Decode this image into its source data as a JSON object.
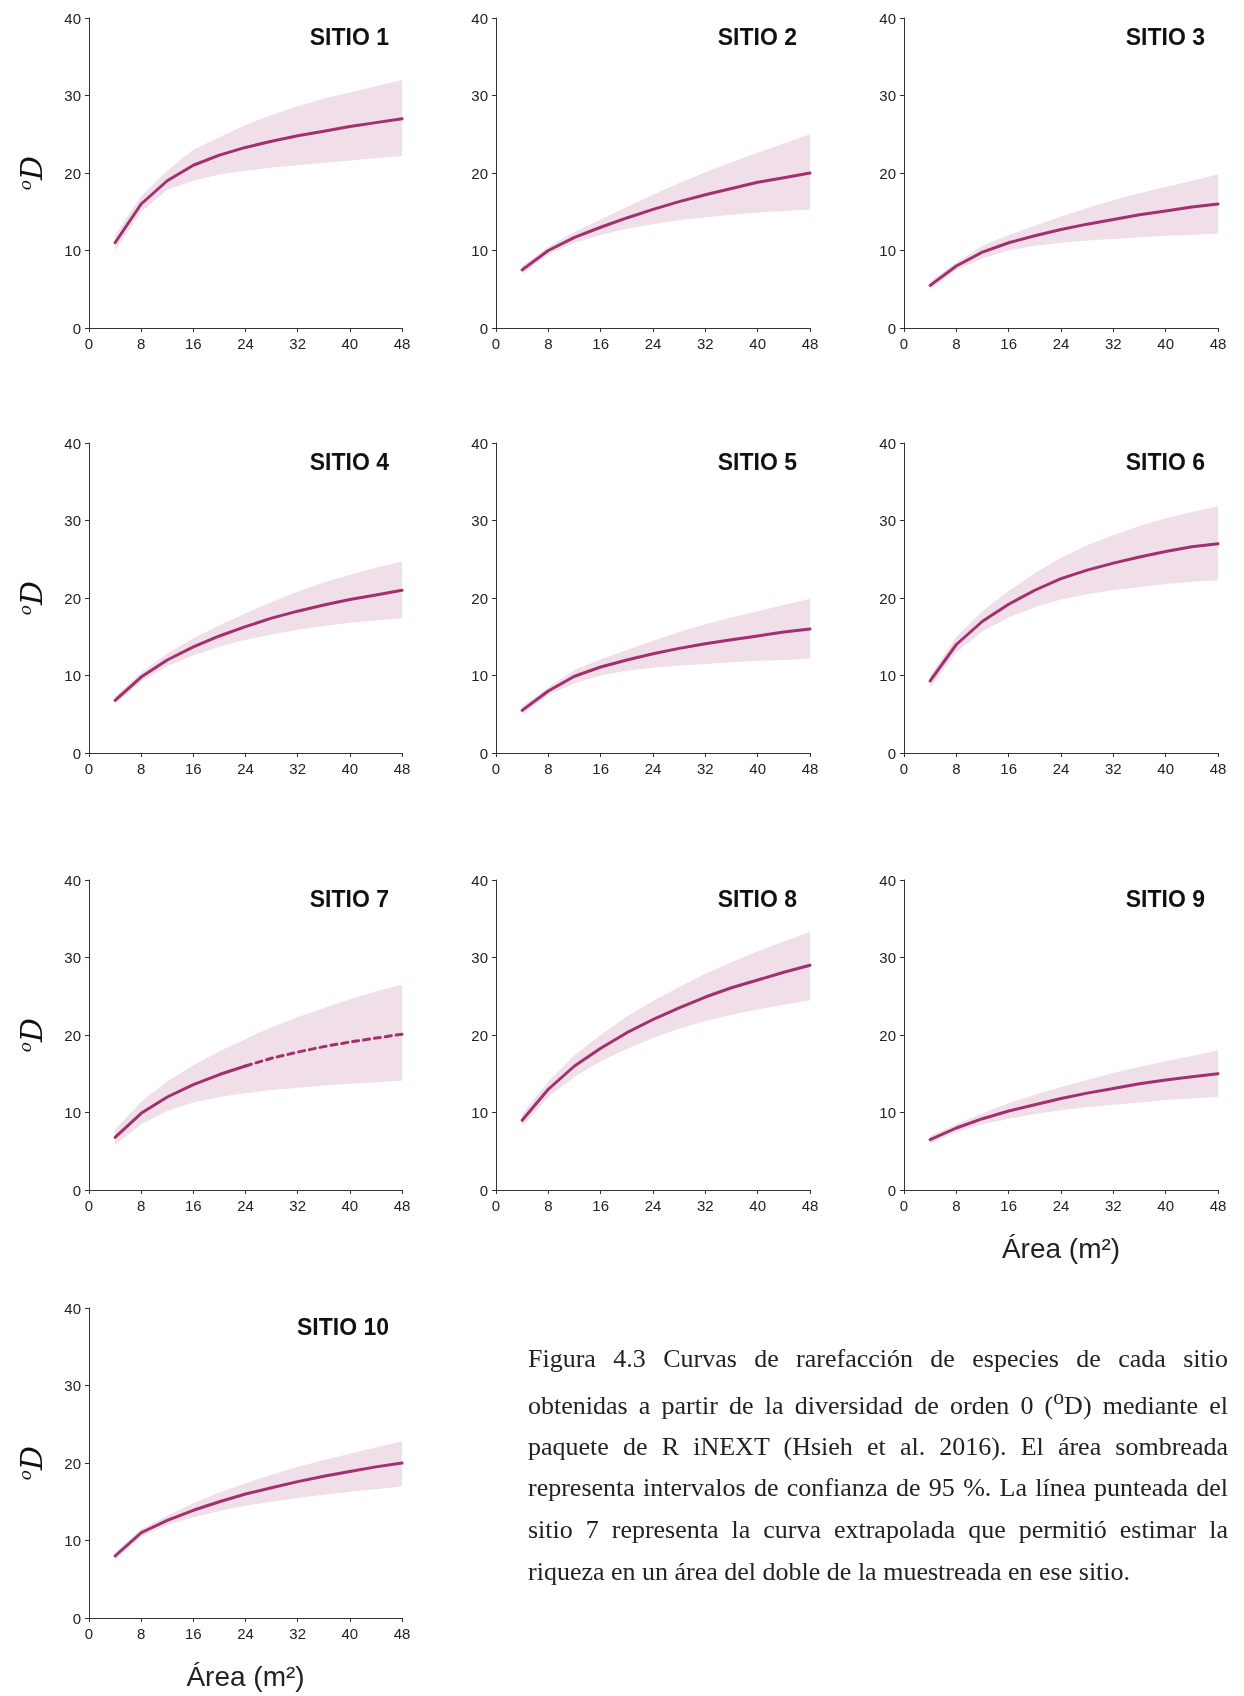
{
  "chart_data": [
    {
      "type": "line",
      "title": "SITIO 1",
      "ylabel": "$^{o}$D",
      "xlim": [
        0,
        48
      ],
      "xticks": [
        0,
        8,
        16,
        24,
        32,
        40,
        48
      ],
      "ylim": [
        0,
        40
      ],
      "yticks": [
        0,
        10,
        20,
        30,
        40
      ],
      "grid": false,
      "x": [
        4,
        8,
        12,
        16,
        20,
        24,
        28,
        32,
        36,
        40,
        44,
        48
      ],
      "series": [
        {
          "color": "#a3306e",
          "values": [
            11,
            16,
            19,
            21,
            22.3,
            23.3,
            24.1,
            24.8,
            25.4,
            26,
            26.5,
            27
          ],
          "lower": [
            10,
            15,
            17.8,
            19,
            19.8,
            20.3,
            20.7,
            21,
            21.3,
            21.6,
            21.9,
            22.2
          ],
          "upper": [
            12,
            17,
            20.3,
            23,
            24.6,
            26.2,
            27.5,
            28.6,
            29.6,
            30.4,
            31.2,
            32
          ]
        }
      ]
    },
    {
      "type": "line",
      "title": "SITIO 2",
      "xlim": [
        0,
        48
      ],
      "xticks": [
        0,
        8,
        16,
        24,
        32,
        40,
        48
      ],
      "ylim": [
        0,
        40
      ],
      "yticks": [
        0,
        10,
        20,
        30,
        40
      ],
      "grid": false,
      "x": [
        4,
        8,
        12,
        16,
        20,
        24,
        28,
        32,
        36,
        40,
        44,
        48
      ],
      "series": [
        {
          "color": "#a3306e",
          "values": [
            7.5,
            10,
            11.7,
            13,
            14.2,
            15.3,
            16.3,
            17.2,
            18,
            18.8,
            19.4,
            20
          ],
          "lower": [
            7,
            9.5,
            11,
            12,
            12.8,
            13.4,
            13.9,
            14.3,
            14.6,
            14.9,
            15.1,
            15.3
          ],
          "upper": [
            8,
            10.5,
            12.4,
            14,
            15.6,
            17.2,
            18.7,
            20.1,
            21.4,
            22.6,
            23.8,
            25
          ]
        }
      ]
    },
    {
      "type": "line",
      "title": "SITIO 3",
      "xlim": [
        0,
        48
      ],
      "xticks": [
        0,
        8,
        16,
        24,
        32,
        40,
        48
      ],
      "ylim": [
        0,
        40
      ],
      "yticks": [
        0,
        10,
        20,
        30,
        40
      ],
      "grid": false,
      "x": [
        4,
        8,
        12,
        16,
        20,
        24,
        28,
        32,
        36,
        40,
        44,
        48
      ],
      "series": [
        {
          "color": "#a3306e",
          "values": [
            5.5,
            8,
            9.8,
            11,
            11.9,
            12.7,
            13.4,
            14,
            14.6,
            15.1,
            15.6,
            16
          ],
          "lower": [
            5,
            7.5,
            9,
            10,
            10.6,
            11,
            11.3,
            11.5,
            11.7,
            11.9,
            12,
            12.2
          ],
          "upper": [
            6,
            8.5,
            10.6,
            12,
            13.2,
            14.4,
            15.5,
            16.5,
            17.4,
            18.2,
            19,
            19.8
          ]
        }
      ]
    },
    {
      "type": "line",
      "title": "SITIO 4",
      "ylabel": "$^{o}$D",
      "xlim": [
        0,
        48
      ],
      "xticks": [
        0,
        8,
        16,
        24,
        32,
        40,
        48
      ],
      "ylim": [
        0,
        40
      ],
      "yticks": [
        0,
        10,
        20,
        30,
        40
      ],
      "grid": false,
      "x": [
        4,
        8,
        12,
        16,
        20,
        24,
        28,
        32,
        36,
        40,
        44,
        48
      ],
      "series": [
        {
          "color": "#a3306e",
          "values": [
            6.8,
            9.8,
            12,
            13.7,
            15.1,
            16.3,
            17.4,
            18.3,
            19.1,
            19.8,
            20.4,
            21
          ],
          "lower": [
            6.3,
            9.2,
            11.2,
            12.6,
            13.7,
            14.6,
            15.3,
            15.9,
            16.4,
            16.8,
            17.1,
            17.4
          ],
          "upper": [
            7.3,
            10.4,
            12.8,
            14.8,
            16.5,
            18,
            19.5,
            20.8,
            22,
            23,
            23.9,
            24.7
          ]
        }
      ]
    },
    {
      "type": "line",
      "title": "SITIO 5",
      "xlim": [
        0,
        48
      ],
      "xticks": [
        0,
        8,
        16,
        24,
        32,
        40,
        48
      ],
      "ylim": [
        0,
        40
      ],
      "yticks": [
        0,
        10,
        20,
        30,
        40
      ],
      "grid": false,
      "x": [
        4,
        8,
        12,
        16,
        20,
        24,
        28,
        32,
        36,
        40,
        44,
        48
      ],
      "series": [
        {
          "color": "#a3306e",
          "values": [
            5.5,
            8,
            9.9,
            11.1,
            12,
            12.8,
            13.5,
            14.1,
            14.6,
            15.1,
            15.6,
            16
          ],
          "lower": [
            5,
            7.5,
            9,
            10,
            10.6,
            11,
            11.3,
            11.5,
            11.7,
            11.9,
            12,
            12.2
          ],
          "upper": [
            6,
            8.5,
            10.7,
            12.1,
            13.3,
            14.5,
            15.6,
            16.6,
            17.5,
            18.3,
            19.1,
            19.9
          ]
        }
      ]
    },
    {
      "type": "line",
      "title": "SITIO 6",
      "xlim": [
        0,
        48
      ],
      "xticks": [
        0,
        8,
        16,
        24,
        32,
        40,
        48
      ],
      "ylim": [
        0,
        40
      ],
      "yticks": [
        0,
        10,
        20,
        30,
        40
      ],
      "grid": false,
      "x": [
        4,
        8,
        12,
        16,
        20,
        24,
        28,
        32,
        36,
        40,
        44,
        48
      ],
      "series": [
        {
          "color": "#a3306e",
          "values": [
            9.3,
            14,
            17,
            19.2,
            21,
            22.5,
            23.6,
            24.5,
            25.3,
            26,
            26.6,
            27
          ],
          "lower": [
            8.5,
            13,
            15.7,
            17.5,
            18.8,
            19.8,
            20.5,
            21,
            21.4,
            21.8,
            22.1,
            22.3
          ],
          "upper": [
            10,
            15,
            18.3,
            20.9,
            23.2,
            25.2,
            26.8,
            28.1,
            29.3,
            30.3,
            31.1,
            31.8
          ]
        }
      ]
    },
    {
      "type": "line",
      "title": "SITIO 7",
      "ylabel": "$^{o}$D",
      "xlim": [
        0,
        48
      ],
      "xticks": [
        0,
        8,
        16,
        24,
        32,
        40,
        48
      ],
      "ylim": [
        0,
        40
      ],
      "yticks": [
        0,
        10,
        20,
        30,
        40
      ],
      "grid": false,
      "series": [
        {
          "color": "#a3306e",
          "x": [
            4,
            8,
            12,
            16,
            20,
            24
          ],
          "values": [
            6.8,
            9.9,
            12,
            13.6,
            14.9,
            16
          ],
          "lower": [
            5.8,
            8.5,
            10.2,
            11.3,
            12,
            12.5
          ],
          "upper": [
            7.8,
            11.4,
            14,
            16.1,
            17.9,
            19.5
          ]
        },
        {
          "color": "#a3306e",
          "line_style": "dashed",
          "x": [
            24,
            28,
            32,
            36,
            40,
            44,
            48
          ],
          "values": [
            16,
            17,
            17.8,
            18.5,
            19.1,
            19.6,
            20.1
          ],
          "lower": [
            12.5,
            12.9,
            13.2,
            13.5,
            13.7,
            13.9,
            14.1
          ],
          "upper": [
            19.5,
            21,
            22.3,
            23.5,
            24.6,
            25.6,
            26.5
          ]
        }
      ]
    },
    {
      "type": "line",
      "title": "SITIO 8",
      "xlim": [
        0,
        48
      ],
      "xticks": [
        0,
        8,
        16,
        24,
        32,
        40,
        48
      ],
      "ylim": [
        0,
        40
      ],
      "yticks": [
        0,
        10,
        20,
        30,
        40
      ],
      "grid": false,
      "x": [
        4,
        8,
        12,
        16,
        20,
        24,
        28,
        32,
        36,
        40,
        44,
        48
      ],
      "series": [
        {
          "color": "#a3306e",
          "values": [
            9,
            13,
            16,
            18.3,
            20.3,
            22,
            23.5,
            24.9,
            26.1,
            27.1,
            28.1,
            29
          ],
          "lower": [
            8.2,
            12,
            14.6,
            16.6,
            18.2,
            19.6,
            20.8,
            21.8,
            22.6,
            23.3,
            23.9,
            24.5
          ],
          "upper": [
            9.8,
            14,
            17.4,
            20,
            22.4,
            24.4,
            26.2,
            27.9,
            29.4,
            30.8,
            32.1,
            33.3
          ]
        }
      ]
    },
    {
      "type": "line",
      "title": "SITIO 9",
      "xlabel": "Área (m²)",
      "xlim": [
        0,
        48
      ],
      "xticks": [
        0,
        8,
        16,
        24,
        32,
        40,
        48
      ],
      "ylim": [
        0,
        40
      ],
      "yticks": [
        0,
        10,
        20,
        30,
        40
      ],
      "grid": false,
      "x": [
        4,
        8,
        12,
        16,
        20,
        24,
        28,
        32,
        36,
        40,
        44,
        48
      ],
      "series": [
        {
          "color": "#a3306e",
          "values": [
            6.5,
            8,
            9.2,
            10.2,
            11,
            11.8,
            12.5,
            13.1,
            13.7,
            14.2,
            14.6,
            15
          ],
          "lower": [
            6,
            7.5,
            8.5,
            9.2,
            9.8,
            10.3,
            10.7,
            11,
            11.3,
            11.6,
            11.8,
            12
          ],
          "upper": [
            7,
            8.5,
            9.9,
            11.2,
            12.3,
            13.3,
            14.2,
            15.1,
            15.9,
            16.6,
            17.3,
            18
          ]
        }
      ]
    },
    {
      "type": "line",
      "title": "SITIO 10",
      "ylabel": "$^{o}$D",
      "xlabel": "Área (m²)",
      "xlim": [
        0,
        48
      ],
      "xticks": [
        0,
        8,
        16,
        24,
        32,
        40,
        48
      ],
      "ylim": [
        0,
        40
      ],
      "yticks": [
        0,
        10,
        20,
        30,
        40
      ],
      "grid": false,
      "x": [
        4,
        8,
        12,
        16,
        20,
        24,
        28,
        32,
        36,
        40,
        44,
        48
      ],
      "annotations": [
        "Figura 4.3 Curvas de rarefacción de especies de cada sitio obtenidas a partir de la diversidad de orden 0 ($^{o}$D) mediante el paquete de R iNEXT (Hsieh et al. 2016). El área sombreada representa intervalos de confianza de 95 %. La línea punteada del sitio 7 representa la curva extrapolada que permitió estimar la riqueza en un área del doble de la muestreada en ese sitio."
      ],
      "series": [
        {
          "color": "#a3306e",
          "values": [
            8,
            11,
            12.6,
            13.9,
            15,
            16,
            16.8,
            17.6,
            18.3,
            18.9,
            19.5,
            20
          ],
          "lower": [
            7.5,
            10.5,
            12,
            13,
            13.8,
            14.5,
            15,
            15.5,
            15.9,
            16.3,
            16.6,
            17
          ],
          "upper": [
            8.5,
            11.5,
            13.2,
            14.8,
            16.2,
            17.4,
            18.5,
            19.5,
            20.4,
            21.2,
            22,
            22.8
          ]
        }
      ]
    }
  ]
}
